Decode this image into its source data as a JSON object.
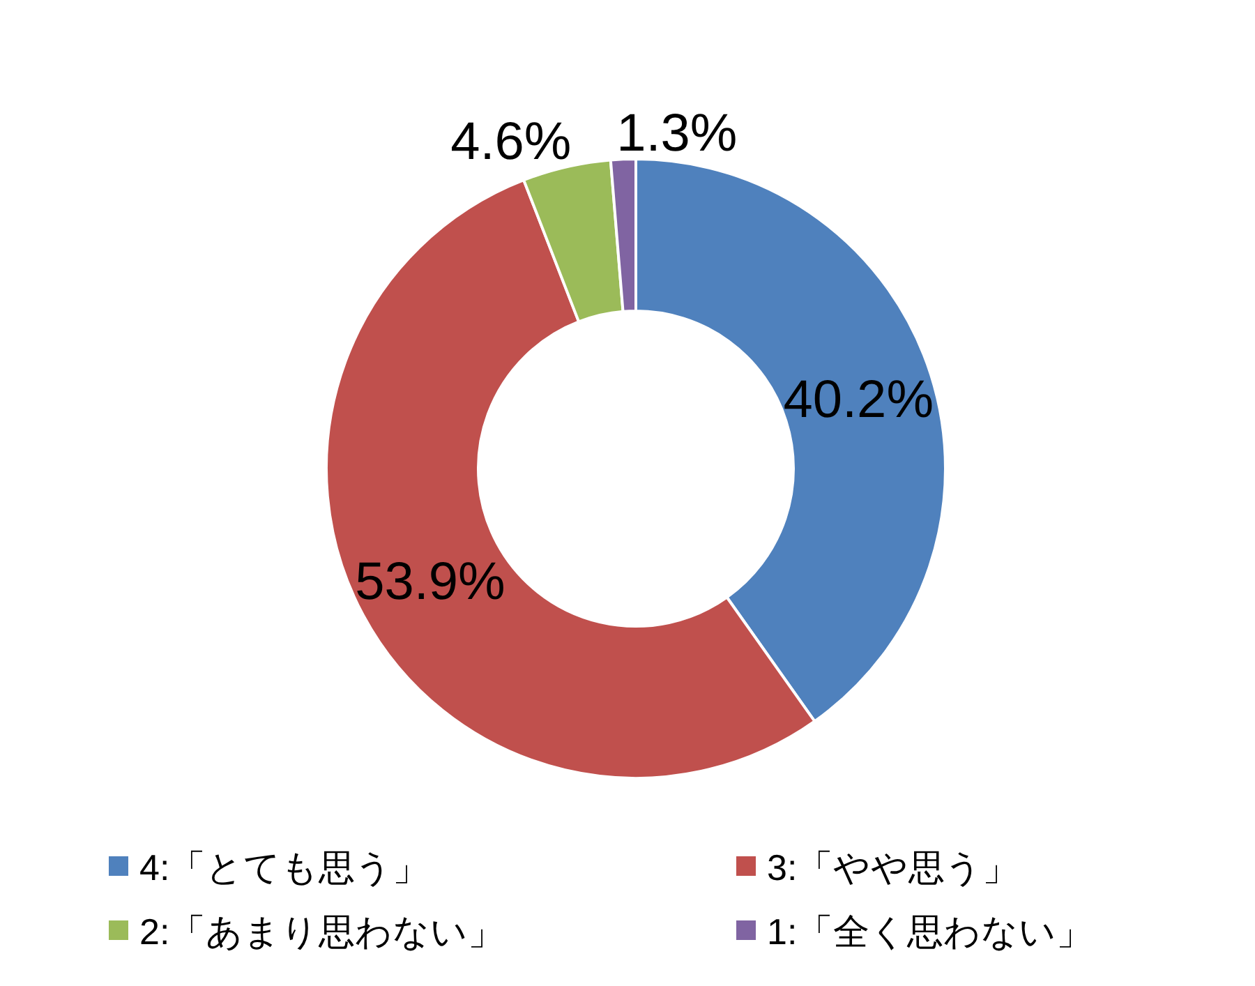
{
  "chart_data": {
    "type": "donut",
    "categories": [
      "4:「とても思う」",
      "3:「やや思う」",
      "2:「あまり思わない」",
      "1:「全く思わない」"
    ],
    "values": [
      40.2,
      53.9,
      4.6,
      1.3
    ],
    "colors": [
      "#4f81bd",
      "#c0504d",
      "#9bbb59",
      "#8064a2"
    ],
    "value_labels": [
      "40.2%",
      "53.9%",
      "4.6%",
      "1.3%"
    ],
    "legend": "bottom"
  }
}
